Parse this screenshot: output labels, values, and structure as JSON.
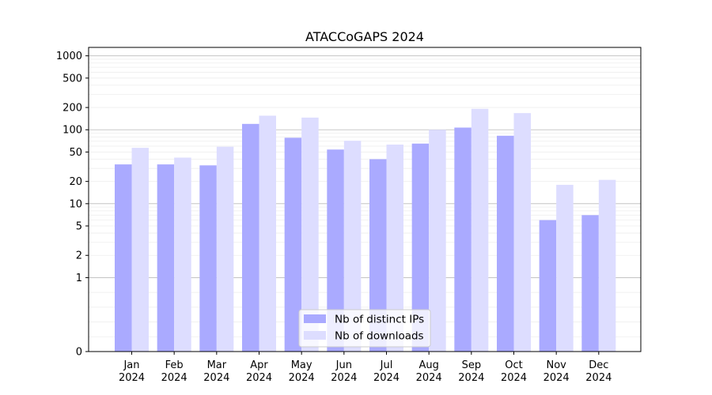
{
  "chart_data": {
    "type": "bar",
    "title": "ATACCoGAPS 2024",
    "xlabel": "",
    "ylabel": "",
    "yscale": "symlog",
    "ylim": [
      0,
      1300
    ],
    "yticks": [
      0,
      1,
      2,
      5,
      10,
      20,
      50,
      100,
      200,
      500,
      1000
    ],
    "grid": true,
    "legend_position": "bottom-center",
    "categories": [
      [
        "Jan",
        "2024"
      ],
      [
        "Feb",
        "2024"
      ],
      [
        "Mar",
        "2024"
      ],
      [
        "Apr",
        "2024"
      ],
      [
        "May",
        "2024"
      ],
      [
        "Jun",
        "2024"
      ],
      [
        "Jul",
        "2024"
      ],
      [
        "Aug",
        "2024"
      ],
      [
        "Sep",
        "2024"
      ],
      [
        "Oct",
        "2024"
      ],
      [
        "Nov",
        "2024"
      ],
      [
        "Dec",
        "2024"
      ]
    ],
    "series": [
      {
        "name": "Nb of distinct IPs",
        "color": "#aaaaff",
        "values": [
          34,
          34,
          33,
          120,
          78,
          54,
          40,
          65,
          107,
          83,
          6,
          7
        ]
      },
      {
        "name": "Nb of downloads",
        "color": "#ddddff",
        "values": [
          57,
          42,
          59,
          155,
          146,
          71,
          63,
          100,
          192,
          168,
          18,
          21
        ]
      }
    ]
  }
}
